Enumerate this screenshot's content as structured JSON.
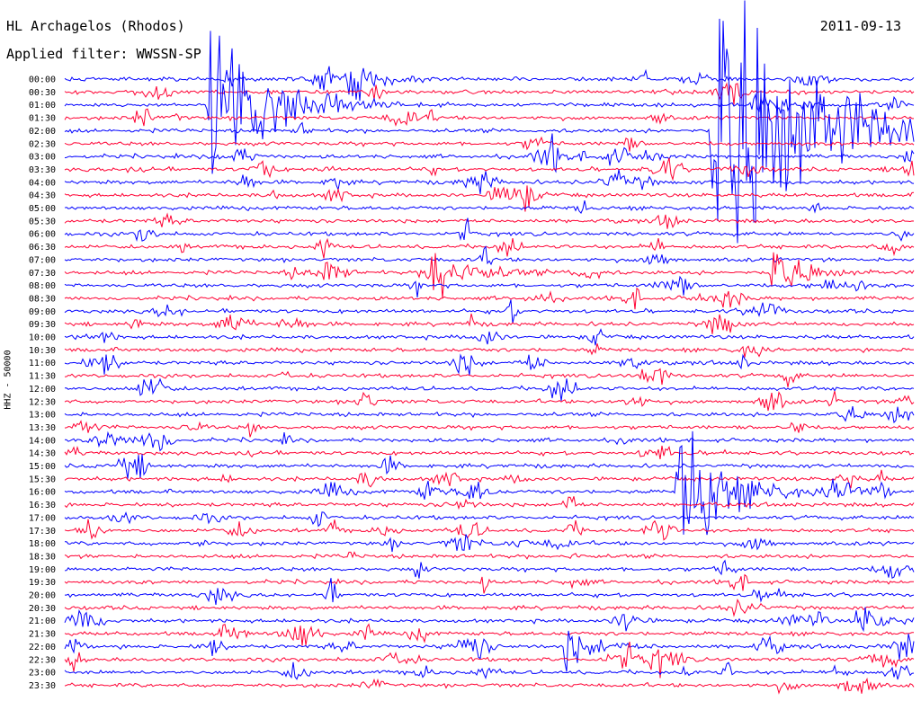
{
  "station": "HL Archagelos (Rhodos)",
  "date": "2011-09-13",
  "filter": "Applied filter: WWSSN-SP",
  "channel_label": "HHZ - 50000",
  "colors": {
    "even_trace": "#0000ff",
    "odd_trace": "#ff0033",
    "text": "#000000",
    "background": "#ffffff"
  },
  "chart_data": {
    "type": "line",
    "subtype": "helicorder",
    "xlabel": "",
    "ylabel": "HHZ - 50000",
    "grid": false,
    "legend": "none",
    "series_colors": [
      "#0000ff",
      "#ff0033"
    ],
    "rows": [
      {
        "label": "00:00"
      },
      {
        "label": "00:30"
      },
      {
        "label": "01:00"
      },
      {
        "label": "01:30"
      },
      {
        "label": "02:00"
      },
      {
        "label": "02:30"
      },
      {
        "label": "03:00"
      },
      {
        "label": "03:30"
      },
      {
        "label": "04:00"
      },
      {
        "label": "04:30"
      },
      {
        "label": "05:00"
      },
      {
        "label": "05:30"
      },
      {
        "label": "06:00"
      },
      {
        "label": "06:30"
      },
      {
        "label": "07:00"
      },
      {
        "label": "07:30"
      },
      {
        "label": "08:00"
      },
      {
        "label": "08:30"
      },
      {
        "label": "09:00"
      },
      {
        "label": "09:30"
      },
      {
        "label": "10:00"
      },
      {
        "label": "10:30"
      },
      {
        "label": "11:00"
      },
      {
        "label": "11:30"
      },
      {
        "label": "12:00"
      },
      {
        "label": "12:30"
      },
      {
        "label": "13:00"
      },
      {
        "label": "13:30"
      },
      {
        "label": "14:00"
      },
      {
        "label": "14:30"
      },
      {
        "label": "15:00"
      },
      {
        "label": "15:30"
      },
      {
        "label": "16:00"
      },
      {
        "label": "16:30"
      },
      {
        "label": "17:00"
      },
      {
        "label": "17:30"
      },
      {
        "label": "18:00"
      },
      {
        "label": "18:30"
      },
      {
        "label": "19:00"
      },
      {
        "label": "19:30"
      },
      {
        "label": "20:00"
      },
      {
        "label": "20:30"
      },
      {
        "label": "21:00"
      },
      {
        "label": "21:30"
      },
      {
        "label": "22:00"
      },
      {
        "label": "22:30"
      },
      {
        "label": "23:00"
      },
      {
        "label": "23:30"
      }
    ],
    "events": [
      {
        "row": 0,
        "minute": 10,
        "amplitude": 0.8
      },
      {
        "row": 2,
        "minute": 5.1,
        "amplitude": 3.0
      },
      {
        "row": 4,
        "minute": 22.9,
        "amplitude": 6.0
      },
      {
        "row": 15,
        "minute": 13,
        "amplitude": 1.2
      },
      {
        "row": 15,
        "minute": 25,
        "amplitude": 1.0
      },
      {
        "row": 32,
        "minute": 21.7,
        "amplitude": 2.2
      },
      {
        "row": 42,
        "minute": 28,
        "amplitude": 0.6
      },
      {
        "row": 44,
        "minute": 17.7,
        "amplitude": 0.8
      }
    ]
  }
}
